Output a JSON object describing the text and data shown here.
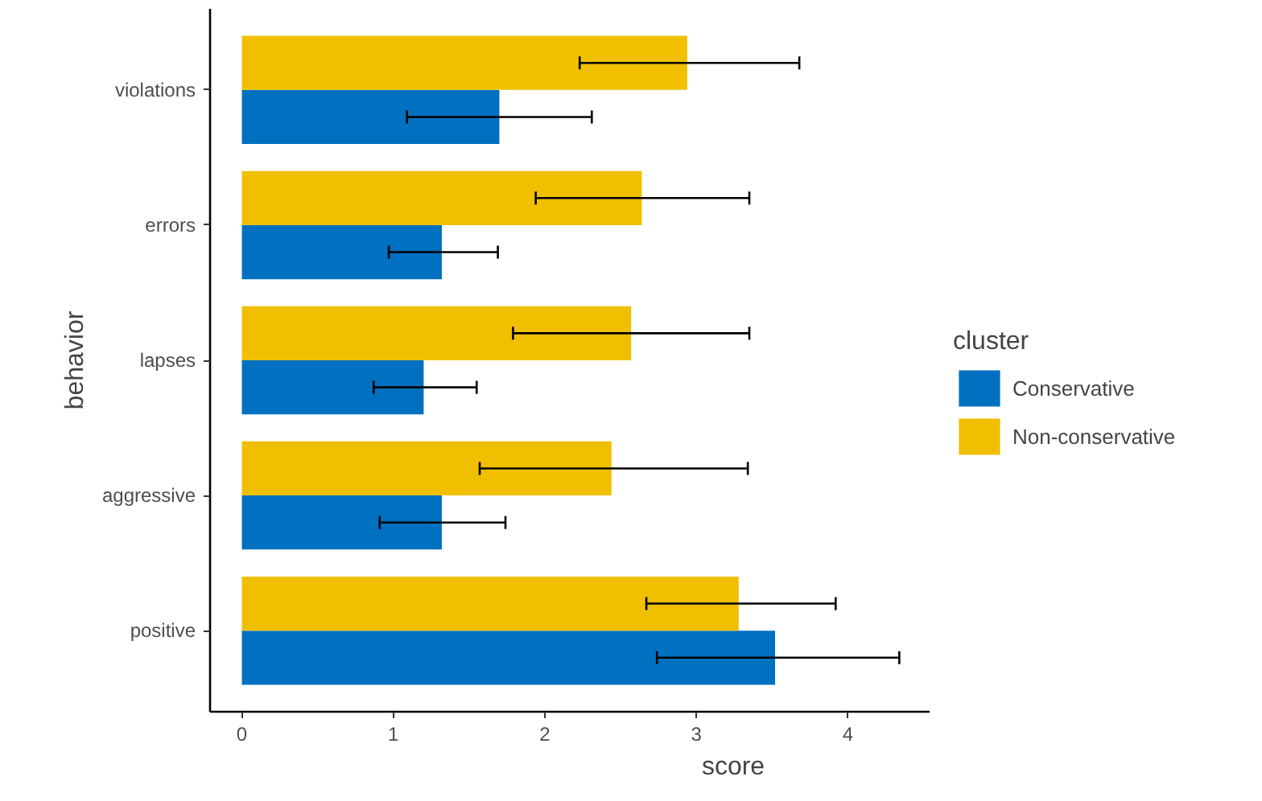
{
  "chart_data": {
    "type": "bar",
    "orientation": "horizontal",
    "xlabel": "score",
    "ylabel": "behavior",
    "legend_title": "cluster",
    "categories": [
      "violations",
      "errors",
      "lapses",
      "aggressive",
      "positive"
    ],
    "series": [
      {
        "name": "Conservative",
        "color": "#0070c0",
        "values": [
          1.7,
          1.32,
          1.2,
          1.32,
          3.52
        ],
        "errors": [
          [
            1.09,
            2.31
          ],
          [
            0.97,
            1.69
          ],
          [
            0.87,
            1.55
          ],
          [
            0.91,
            1.74
          ],
          [
            2.74,
            4.34
          ]
        ]
      },
      {
        "name": "Non-conservative",
        "color": "#f0c000",
        "values": [
          2.94,
          2.64,
          2.57,
          2.44,
          3.28
        ],
        "errors": [
          [
            2.23,
            3.68
          ],
          [
            1.94,
            3.35
          ],
          [
            1.79,
            3.35
          ],
          [
            1.57,
            3.34
          ],
          [
            2.67,
            3.92
          ]
        ]
      }
    ],
    "xlim": [
      -0.21,
      4.54
    ],
    "xticks": [
      0,
      1,
      2,
      3,
      4
    ],
    "grid": false,
    "legend": "right"
  }
}
